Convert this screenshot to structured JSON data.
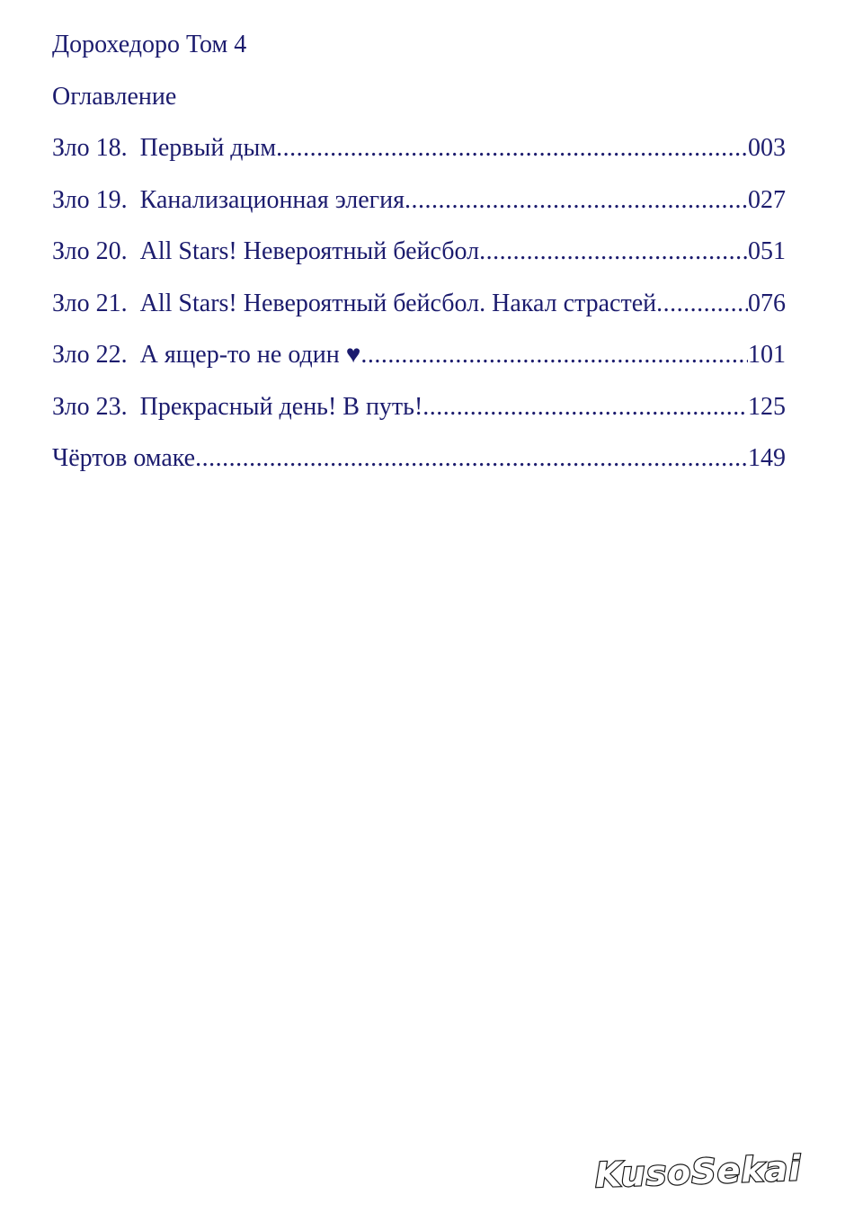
{
  "toc": {
    "title": "Дорохедоро Том 4",
    "heading": "Оглавление",
    "entries": [
      {
        "label": "Зло 18.  Первый дым",
        "page": "003"
      },
      {
        "label": "Зло 19.  Канализационная элегия",
        "page": "027"
      },
      {
        "label": "Зло 20.  All Stars! Невероятный бейсбол",
        "page": "051"
      },
      {
        "label": "Зло 21.  All Stars! Невероятный бейсбол. Накал страстей",
        "page": "076"
      },
      {
        "label": "Зло 22.  А ящер-то не один ♥",
        "page": "101"
      },
      {
        "label": "Зло 23.  Прекрасный день! В путь!",
        "page": "125"
      },
      {
        "label": "Чёртов омаке",
        "page": "149"
      }
    ],
    "text_color": "#1c1c6e"
  },
  "watermark": {
    "text": "KusoSekai",
    "outline_color": "#1a1a1a",
    "fill_color": "#ffffff"
  }
}
